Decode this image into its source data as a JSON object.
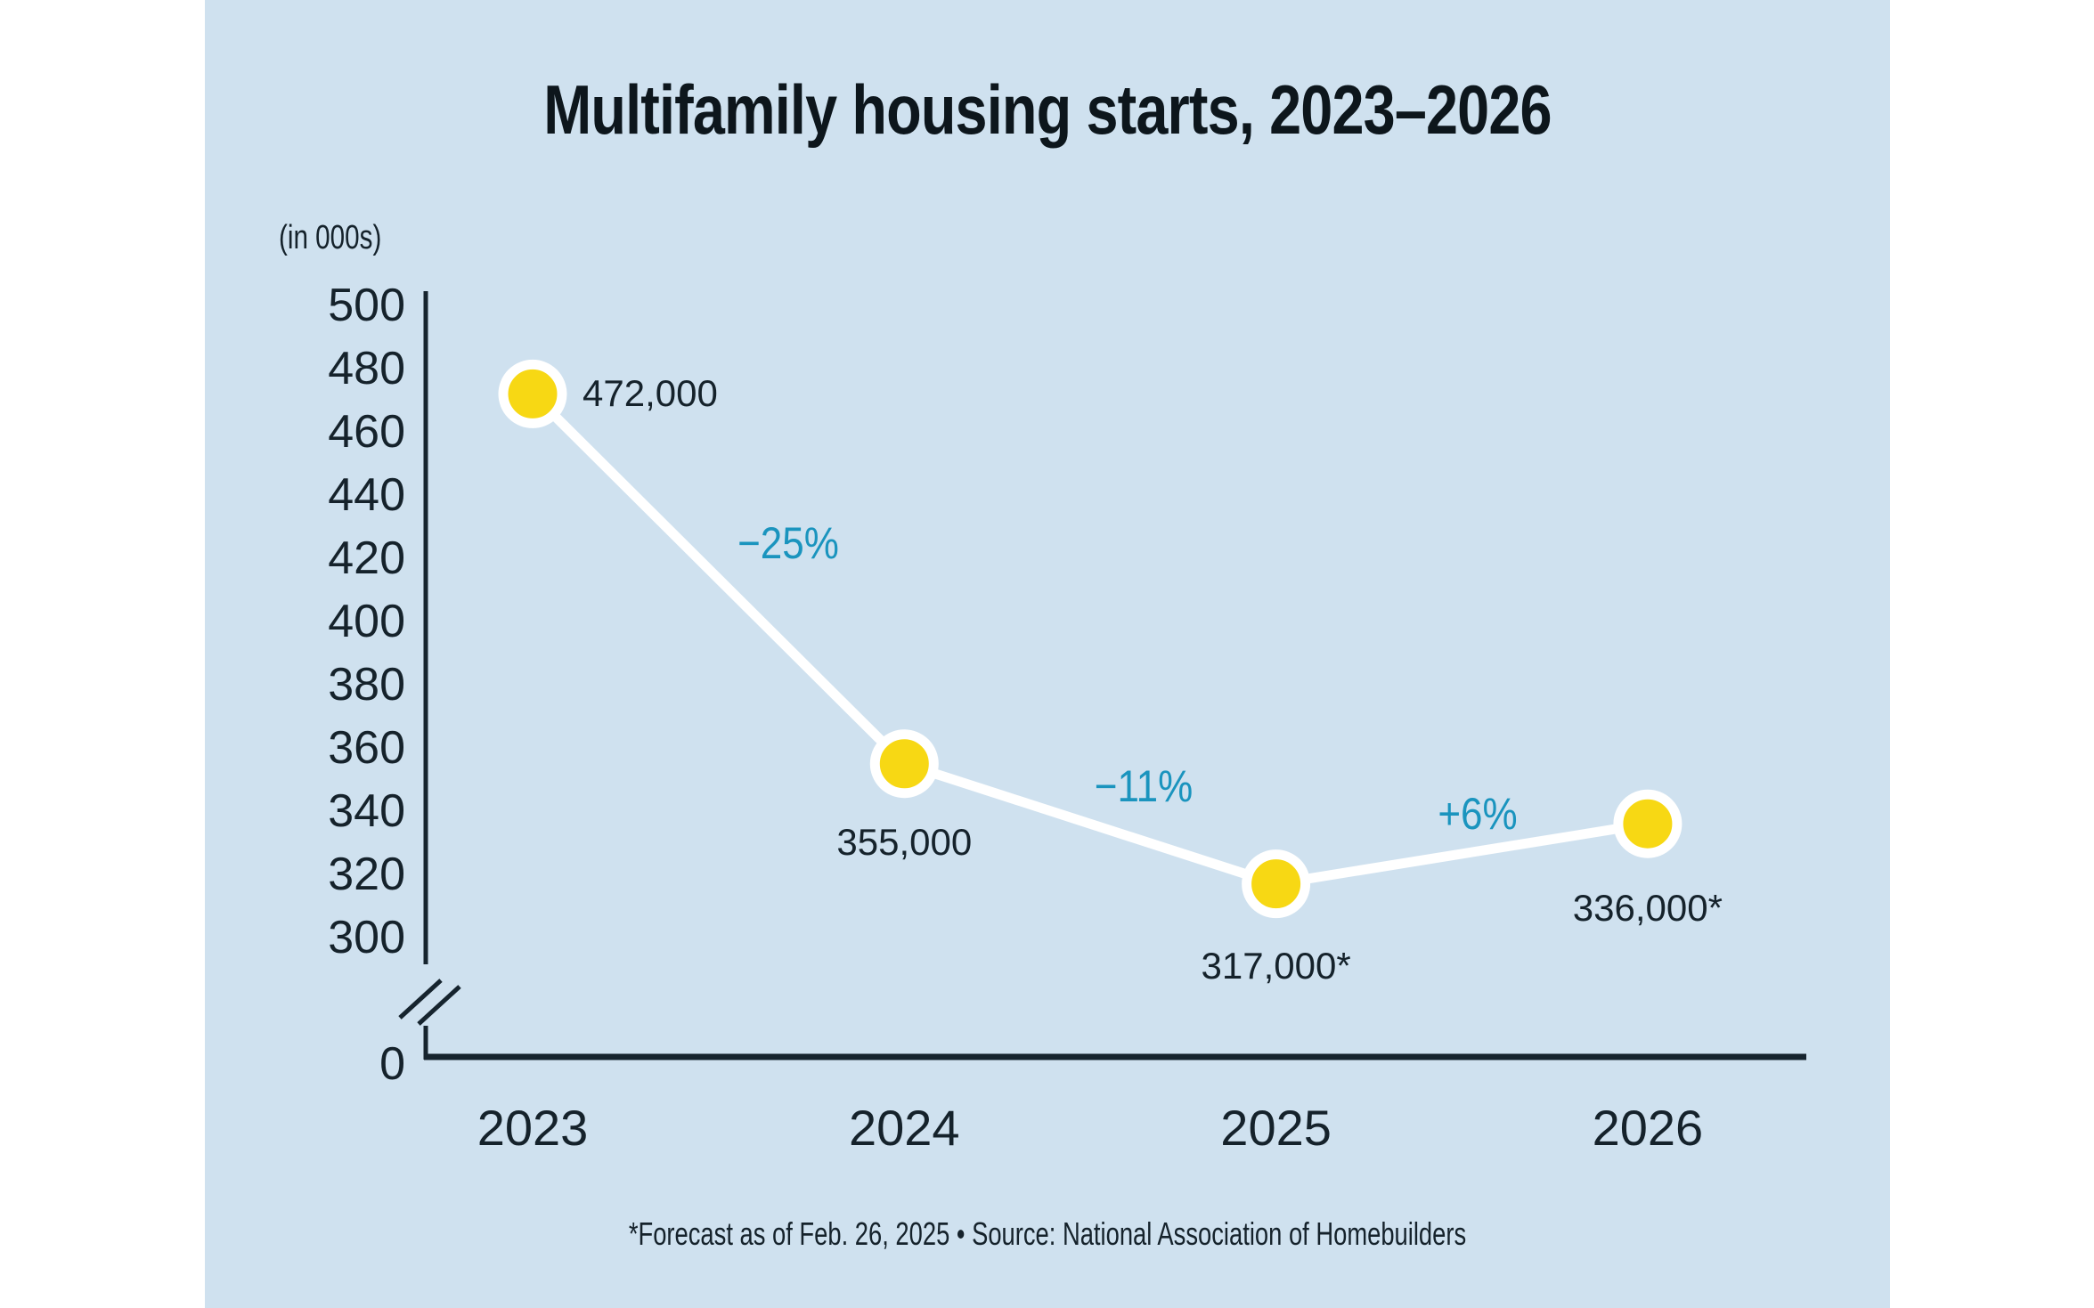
{
  "title": "Multifamily housing starts, 2023–2026",
  "footer": "*Forecast as of Feb. 26, 2025  • Source: National Association of Homebuilders",
  "colors": {
    "page_background": "#FFFFFF",
    "panel_background": "#CFE1EF",
    "title_text": "#0D161C",
    "dark_text": "#15222B",
    "axis_dark": "#16242E",
    "percent_teal": "#1A94BE",
    "point_yellow": "#F7D814",
    "point_ring_white": "#FFFFFF",
    "trend_line_white": "#FFFFFF"
  },
  "chart_data": {
    "type": "line",
    "title": "Multifamily housing starts, 2023–2026",
    "categories": [
      "2023",
      "2024",
      "2025",
      "2026"
    ],
    "series": [
      {
        "name": "Multifamily housing starts (in 000s)",
        "values": [
          472,
          355,
          317,
          336
        ]
      }
    ],
    "point_value_labels": [
      "472,000",
      "355,000",
      "317,000*",
      "336,000*"
    ],
    "percent_change_labels": [
      "−25%",
      "−11%",
      "+6%"
    ],
    "ylabel": "(in 000s)",
    "ytick_labels": [
      "500",
      "480",
      "460",
      "440",
      "420",
      "400",
      "380",
      "360",
      "340",
      "320",
      "300"
    ],
    "baseline_tick_label": "0",
    "axis_break": true,
    "ylim": [
      300,
      500
    ],
    "grid": false,
    "legend": "none",
    "footnote": "*Forecast as of Feb. 26, 2025",
    "source": "Source: National Association of Homebuilders"
  }
}
